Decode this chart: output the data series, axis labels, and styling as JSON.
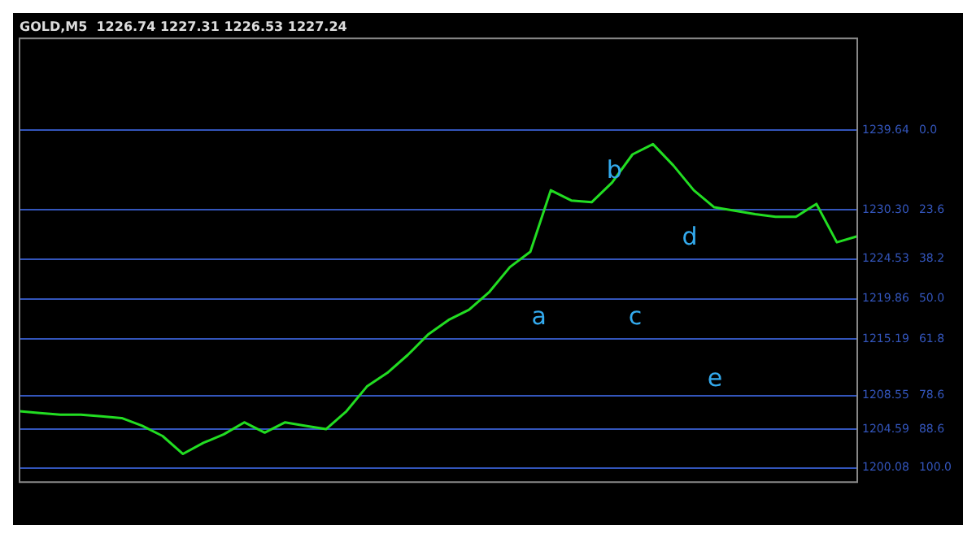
{
  "chart_data": {
    "type": "line",
    "title": "GOLD,M5  1226.74 1227.31 1226.53 1227.24",
    "categories": [
      null,
      null,
      null,
      null,
      null,
      null,
      null,
      null,
      null,
      null,
      null,
      null,
      null,
      null,
      null,
      null,
      null,
      null,
      null,
      null,
      null,
      null,
      null,
      null,
      null,
      null,
      null,
      null,
      null,
      null,
      null,
      null,
      null,
      null,
      null,
      null,
      null,
      null,
      null,
      null,
      null,
      null
    ],
    "series": [
      {
        "color": "#22dd22",
        "values": [
          1206.7,
          1206.5,
          1206.3,
          1206.3,
          1206.1,
          1205.9,
          1205.0,
          1203.8,
          1201.7,
          1203.0,
          1204.0,
          1205.4,
          1204.2,
          1205.4,
          1205.0,
          1204.6,
          1206.7,
          1209.6,
          1211.2,
          1213.3,
          1215.7,
          1217.4,
          1218.6,
          1220.7,
          1223.6,
          1225.4,
          1232.6,
          1231.4,
          1231.2,
          1233.5,
          1236.8,
          1238.0,
          1235.5,
          1232.6,
          1230.6,
          1230.2,
          1229.8,
          1229.5,
          1229.5,
          1231.0,
          1226.5,
          1227.2
        ]
      }
    ],
    "ylim": [
      1198.4,
      1250.4
    ],
    "yticks": [
      1239.64,
      {
        "value": 1230.3,
        "label": "1230.30"
      },
      1224.53,
      1219.86,
      1215.19,
      1208.55,
      1204.59,
      1200.08
    ],
    "y2lim": [
      104.25,
      -27.2
    ],
    "y2ticks": [
      {
        "value": 0,
        "label": "0.0"
      },
      23.6,
      38.2,
      {
        "value": 50,
        "label": "50.0"
      },
      61.8,
      78.6,
      88.6,
      {
        "value": 100,
        "label": "100.0"
      }
    ],
    "grid": "y",
    "legend": false,
    "marker": "none",
    "line_style": "solid",
    "annotations": [
      "a",
      "b",
      "c",
      "d",
      "e"
    ]
  }
}
